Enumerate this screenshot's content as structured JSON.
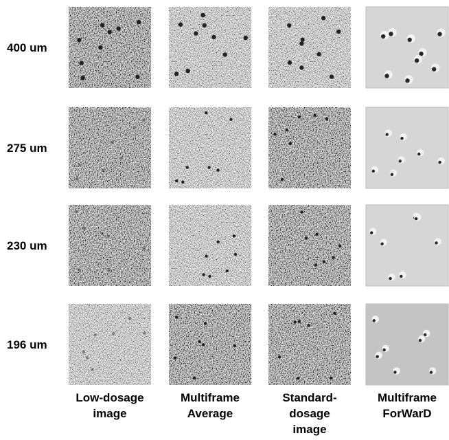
{
  "rows": [
    {
      "label": "400 um"
    },
    {
      "label": "275 um"
    },
    {
      "label": "230 um"
    },
    {
      "label": "196 um"
    }
  ],
  "columns": [
    {
      "label_lines": [
        "Low-dosage",
        "image"
      ]
    },
    {
      "label_lines": [
        "Multiframe",
        "Average"
      ]
    },
    {
      "label_lines": [
        "Standard-",
        "dosage",
        "image"
      ]
    },
    {
      "label_lines": [
        "Multiframe",
        "ForWarD"
      ]
    }
  ]
}
